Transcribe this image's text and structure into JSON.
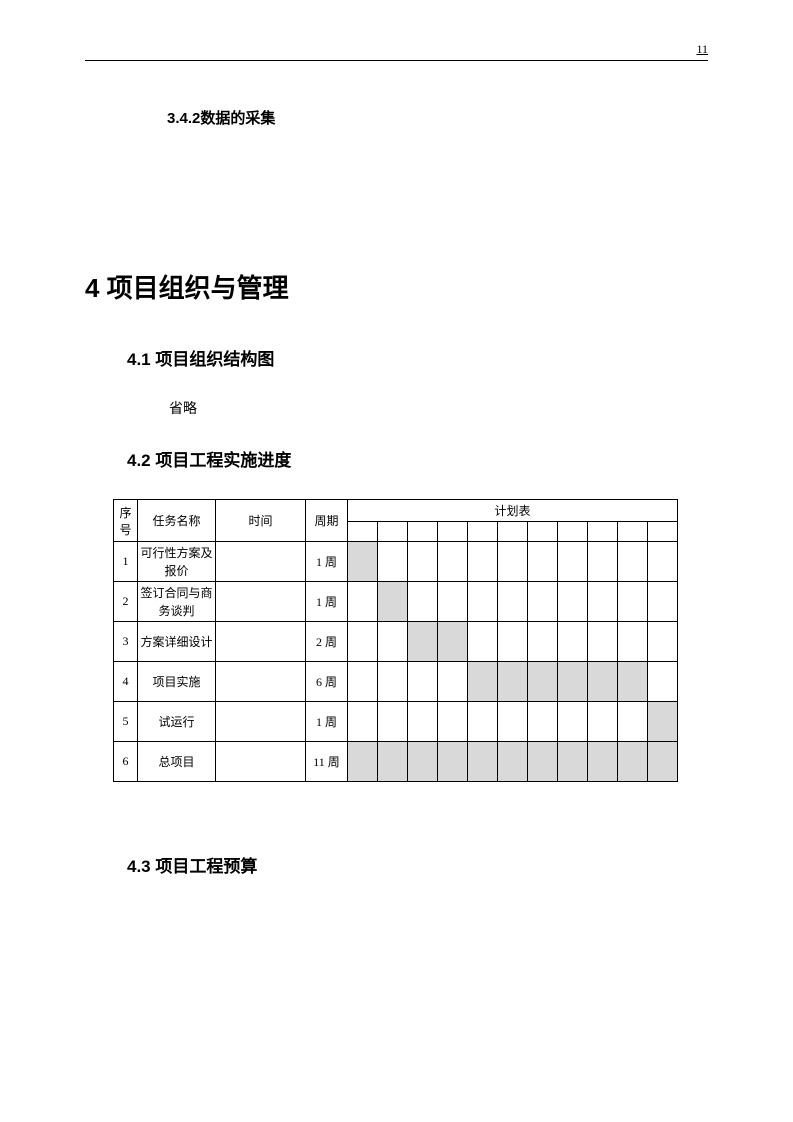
{
  "page_number": "11",
  "section_342": "3.4.2数据的采集",
  "chapter_4": "4 项目组织与管理",
  "section_41": "4.1 项目组织结构图",
  "section_41_body": "省略",
  "section_42": "4.2 项目工程实施进度",
  "section_43": "4.3 项目工程预算",
  "table": {
    "headers": {
      "seq": "序号",
      "task": "任务名称",
      "time": "时间",
      "period": "周期",
      "plan": "计划表"
    },
    "gantt_columns": 11,
    "fill_color": "#d9d9d9",
    "border_color": "#000000",
    "rows": [
      {
        "seq": "1",
        "task": "可行性方案及报价",
        "time": "",
        "period": "1 周",
        "filled": [
          0
        ]
      },
      {
        "seq": "2",
        "task": "签订合同与商务谈判",
        "time": "",
        "period": "1 周",
        "filled": [
          1
        ]
      },
      {
        "seq": "3",
        "task": "方案详细设计",
        "time": "",
        "period": "2 周",
        "filled": [
          2,
          3
        ]
      },
      {
        "seq": "4",
        "task": "项目实施",
        "time": "",
        "period": "6 周",
        "filled": [
          4,
          5,
          6,
          7,
          8,
          9
        ]
      },
      {
        "seq": "5",
        "task": "试运行",
        "time": "",
        "period": "1 周",
        "filled": [
          10
        ]
      },
      {
        "seq": "6",
        "task": "总项目",
        "time": "",
        "period": "11 周",
        "filled": [
          0,
          1,
          2,
          3,
          4,
          5,
          6,
          7,
          8,
          9,
          10
        ]
      }
    ]
  }
}
